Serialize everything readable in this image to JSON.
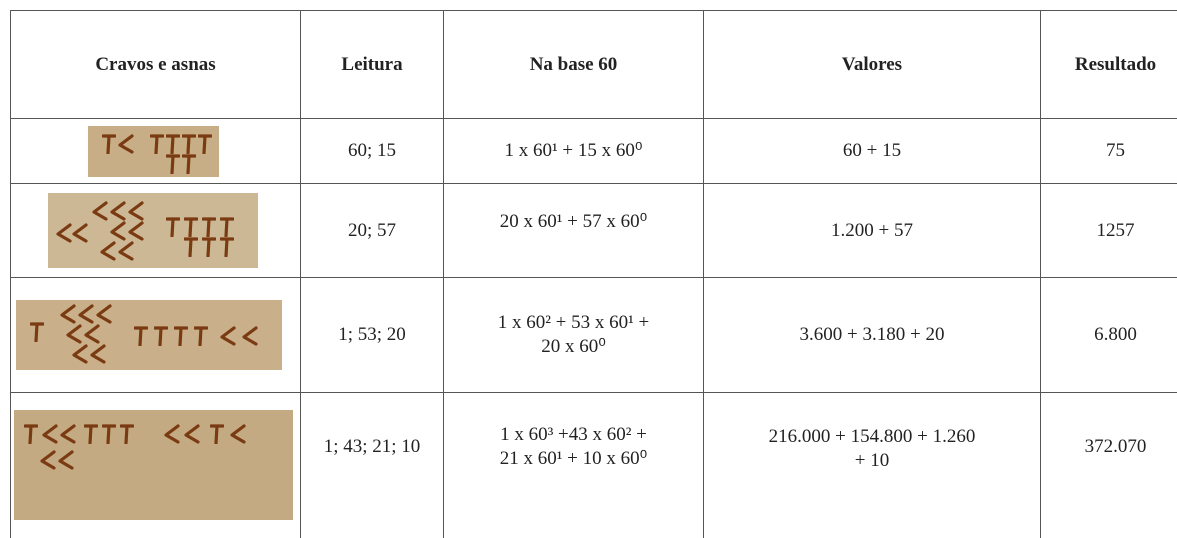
{
  "table": {
    "header": [
      "Cravos e asnas",
      "Leitura",
      "Na base 60",
      "Valores",
      "Resultado"
    ],
    "rows": [
      {
        "reading": "60; 15",
        "base60": [
          "1 x 60¹ + 15 x 60⁰"
        ],
        "values": [
          "60 + 15"
        ],
        "result": "75"
      },
      {
        "reading": "20; 57",
        "base60": [
          "20 x 60¹ + 57 x 60⁰"
        ],
        "values": [
          "1.200 + 57"
        ],
        "result": "1257"
      },
      {
        "reading": "1; 53; 20",
        "base60": [
          "1 x 60² + 53 x 60¹ +",
          "20 x 60⁰"
        ],
        "values": [
          "3.600 + 3.180 + 20"
        ],
        "result": "6.800"
      },
      {
        "reading": "1; 43; 21; 10",
        "base60": [
          "1 x 60³ +43 x 60² +",
          "21 x 60¹ + 10 x 60⁰"
        ],
        "values": [
          "216.000 + 154.800 + 1.260",
          "+ 10"
        ],
        "result": "372.070"
      }
    ]
  }
}
